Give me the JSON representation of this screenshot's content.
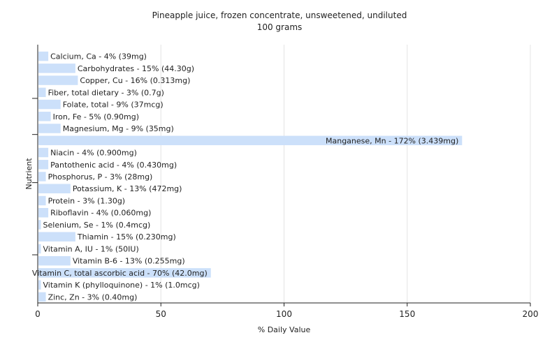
{
  "chart_data": {
    "type": "bar",
    "orientation": "horizontal",
    "title": "Pineapple juice, frozen concentrate, unsweetened, undiluted",
    "subtitle": "100 grams",
    "xlabel": "% Daily Value",
    "ylabel": "Nutrient",
    "xlim": [
      0,
      200
    ],
    "xticks": [
      0,
      50,
      100,
      150,
      200
    ],
    "grid": true,
    "bar_color": "#cce0fa",
    "categories": [
      "Calcium, Ca",
      "Carbohydrates",
      "Copper, Cu",
      "Fiber, total dietary",
      "Folate, total",
      "Iron, Fe",
      "Magnesium, Mg",
      "Manganese, Mn",
      "Niacin",
      "Pantothenic acid",
      "Phosphorus, P",
      "Potassium, K",
      "Protein",
      "Riboflavin",
      "Selenium, Se",
      "Thiamin",
      "Vitamin A, IU",
      "Vitamin B-6",
      "Vitamin C, total ascorbic acid",
      "Vitamin K (phylloquinone)",
      "Zinc, Zn"
    ],
    "values": [
      4,
      15,
      16,
      3,
      9,
      5,
      9,
      172,
      4,
      4,
      3,
      13,
      3,
      4,
      1,
      15,
      1,
      13,
      70,
      1,
      3
    ],
    "labels": [
      "Calcium, Ca - 4% (39mg)",
      "Carbohydrates - 15% (44.30g)",
      "Copper, Cu - 16% (0.313mg)",
      "Fiber, total dietary - 3% (0.7g)",
      "Folate, total - 9% (37mcg)",
      "Iron, Fe - 5% (0.90mg)",
      "Magnesium, Mg - 9% (35mg)",
      "Manganese, Mn - 172% (3.439mg)",
      "Niacin - 4% (0.900mg)",
      "Pantothenic acid - 4% (0.430mg)",
      "Phosphorus, P - 3% (28mg)",
      "Potassium, K - 13% (472mg)",
      "Protein - 3% (1.30g)",
      "Riboflavin - 4% (0.060mg)",
      "Selenium, Se - 1% (0.4mcg)",
      "Thiamin - 15% (0.230mg)",
      "Vitamin A, IU - 1% (50IU)",
      "Vitamin B-6 - 13% (0.255mg)",
      "Vitamin C, total ascorbic acid - 70% (42.0mg)",
      "Vitamin K (phylloquinone) - 1% (1.0mcg)",
      "Zinc, Zn - 3% (0.40mg)"
    ]
  }
}
